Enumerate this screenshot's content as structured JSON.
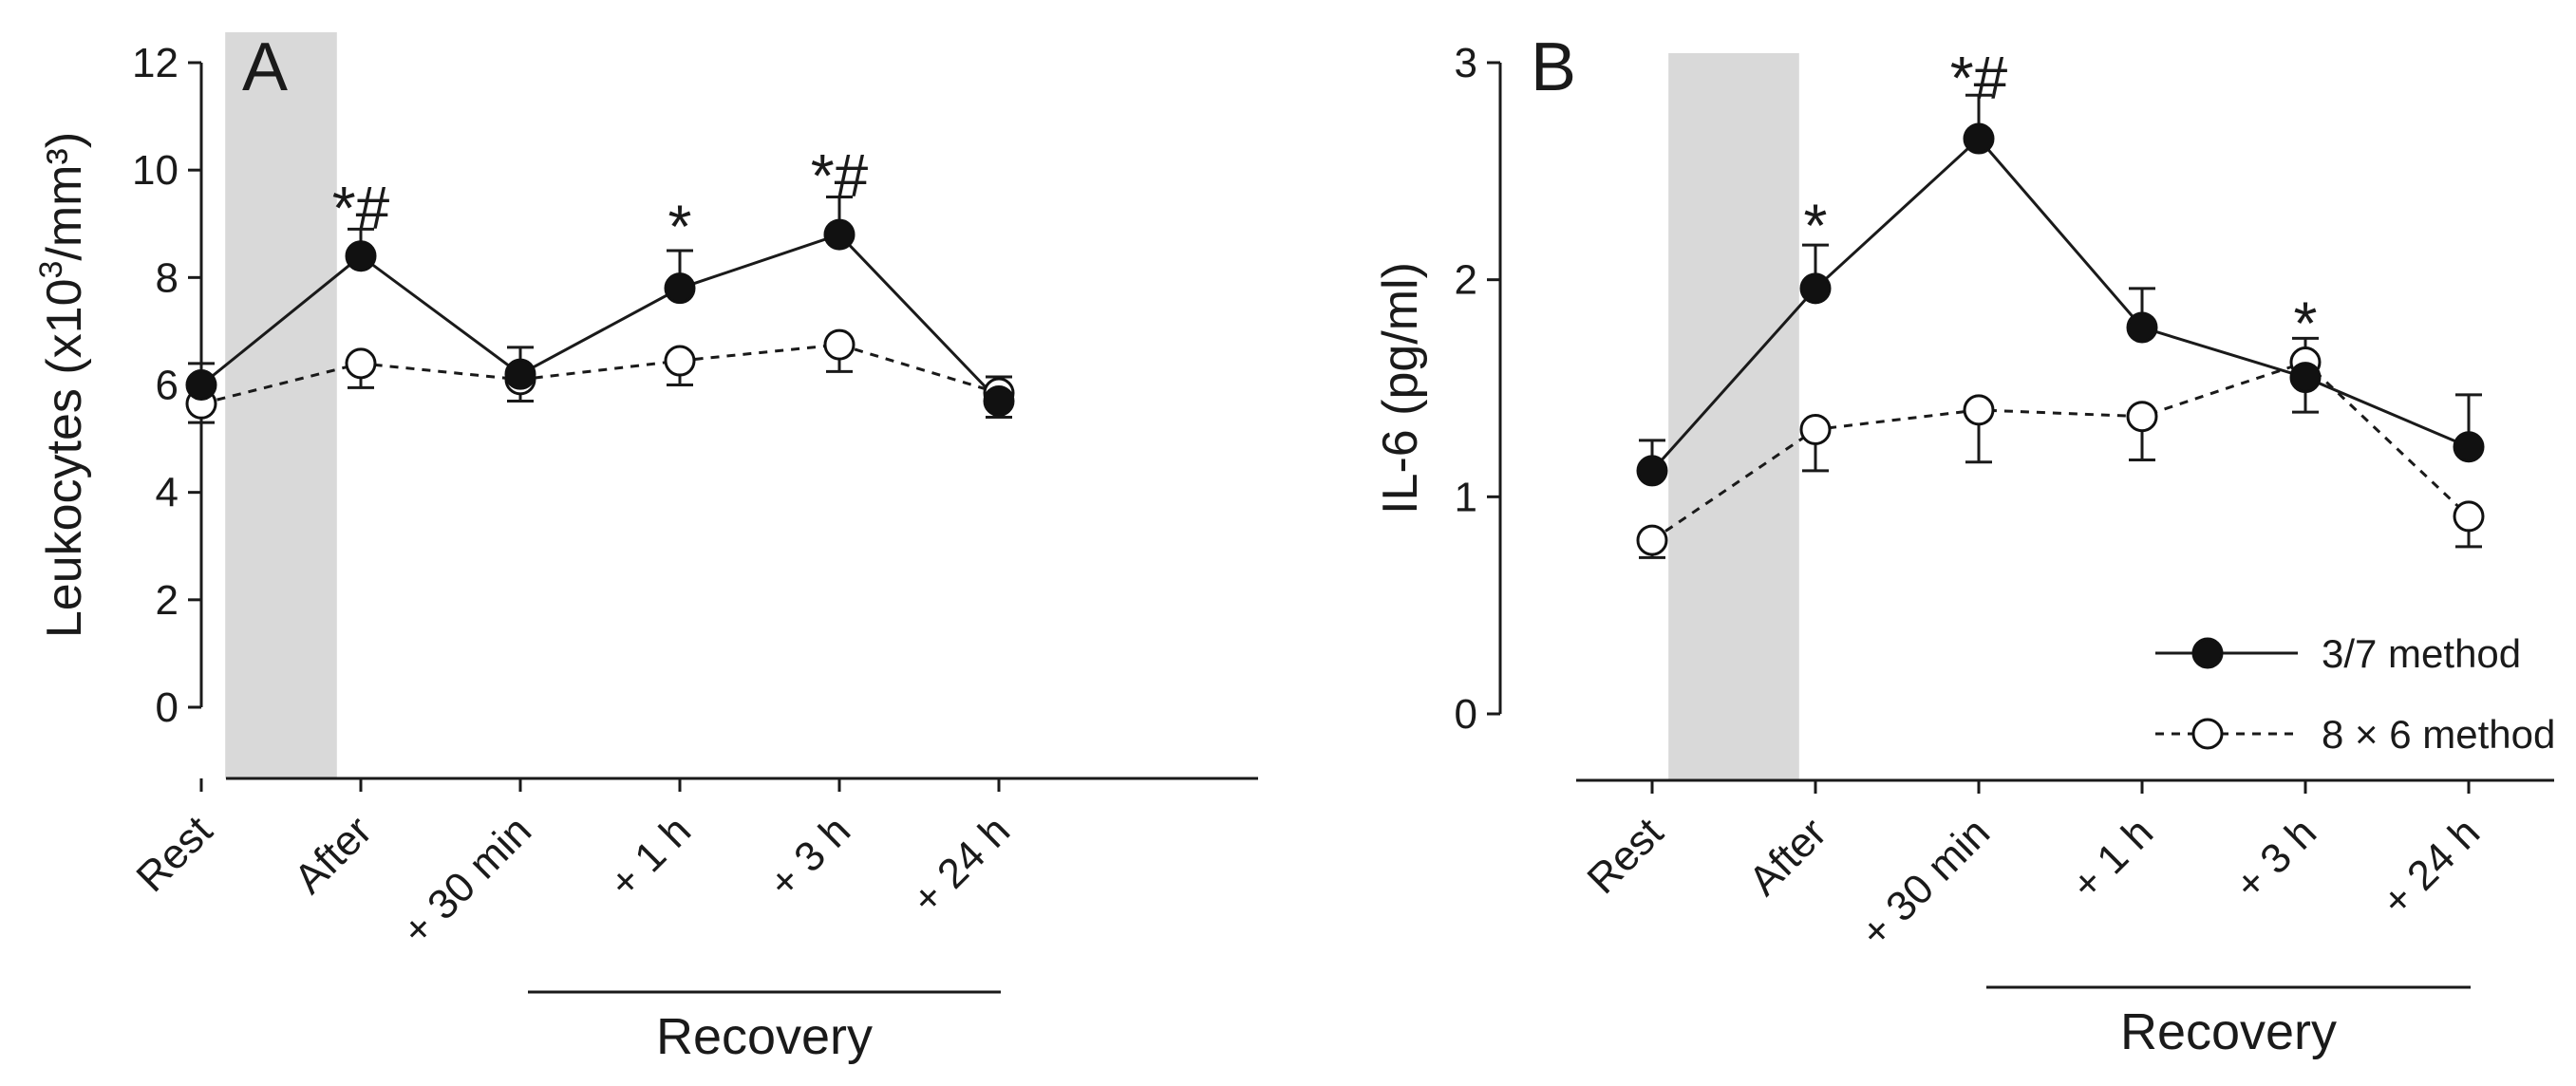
{
  "chart_data": [
    {
      "type": "line",
      "panel": "A",
      "categories": [
        "Rest",
        "After",
        "+ 30 min",
        "+ 1 h",
        "+ 3 h",
        "+ 24 h"
      ],
      "ylabel_main": "Leukocytes (x10",
      "ylabel_sup": "3",
      "ylabel_rest": "/mm³)",
      "ylim": [
        0,
        12
      ],
      "yticks": [
        "0",
        "2",
        "4",
        "6",
        "8",
        "10",
        "12"
      ],
      "exercise_band": [
        0.15,
        0.85
      ],
      "series": [
        {
          "name": "3/7 method",
          "values": [
            6.0,
            8.4,
            6.2,
            7.8,
            8.8,
            5.7
          ],
          "errors": [
            0.4,
            0.5,
            0.5,
            0.7,
            0.7,
            0.3
          ],
          "marker": "filled",
          "dash": false
        },
        {
          "name": "8 × 6 method",
          "values": [
            5.65,
            6.4,
            6.1,
            6.45,
            6.75,
            5.85
          ],
          "errors": [
            0.35,
            0.45,
            0.4,
            0.45,
            0.5,
            0.3
          ],
          "marker": "open",
          "dash": true
        }
      ],
      "annotations": [
        {
          "category_index": 1,
          "text": "*#",
          "y": 9.3
        },
        {
          "category_index": 3,
          "text": "*",
          "y": 8.95
        },
        {
          "category_index": 4,
          "text": "*#",
          "y": 9.9
        }
      ],
      "group_label": "Recovery",
      "group_range": [
        2,
        5
      ]
    },
    {
      "type": "line",
      "panel": "B",
      "categories": [
        "Rest",
        "After",
        "+ 30 min",
        "+ 1 h",
        "+ 3 h",
        "+ 24 h"
      ],
      "ylabel": "IL-6 (pg/ml)",
      "ylim": [
        0,
        3
      ],
      "yticks": [
        "0",
        "1",
        "2",
        "3"
      ],
      "exercise_band": [
        0.1,
        0.9
      ],
      "series": [
        {
          "name": "3/7 method",
          "values": [
            1.12,
            1.96,
            2.65,
            1.78,
            1.55,
            1.23
          ],
          "errors": [
            0.14,
            0.2,
            0.2,
            0.18,
            0.16,
            0.24
          ],
          "marker": "filled",
          "dash": false
        },
        {
          "name": "8 × 6 method",
          "values": [
            0.8,
            1.31,
            1.4,
            1.37,
            1.62,
            0.91
          ],
          "errors": [
            0.08,
            0.19,
            0.24,
            0.2,
            0.11,
            0.14
          ],
          "marker": "open",
          "dash": true
        }
      ],
      "annotations": [
        {
          "category_index": 1,
          "text": "*",
          "y": 2.25
        },
        {
          "category_index": 2,
          "text": "*#",
          "y": 2.93
        },
        {
          "category_index": 4,
          "text": "*",
          "y": 1.8
        }
      ],
      "group_label": "Recovery",
      "group_range": [
        2,
        5
      ],
      "legend": {
        "placement": "bottom-right",
        "entries": [
          "3/7 method",
          "8 × 6 method"
        ]
      }
    }
  ]
}
